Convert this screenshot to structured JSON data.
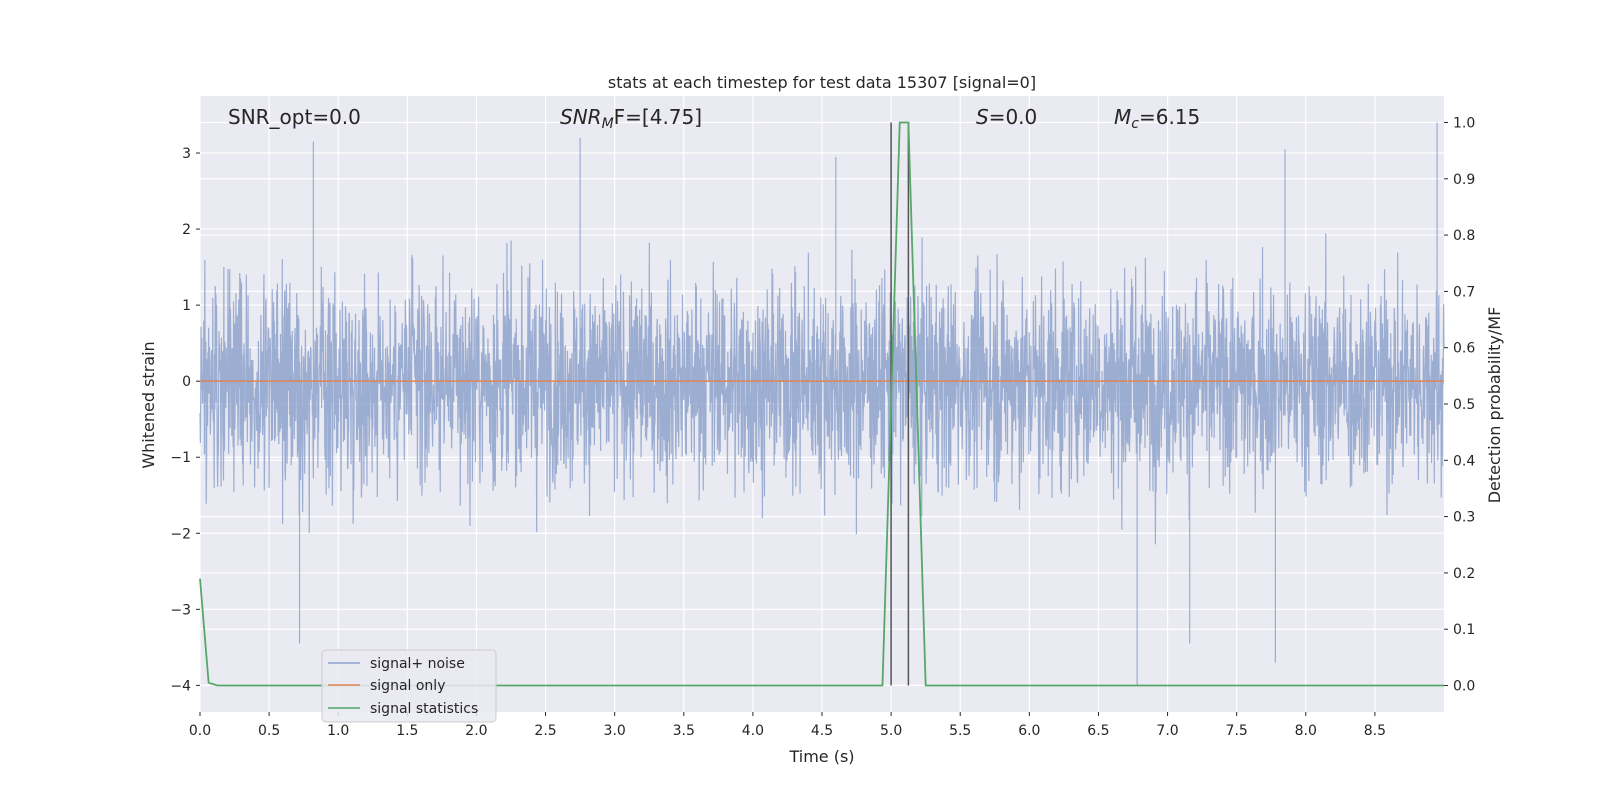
{
  "chart_data": {
    "type": "line",
    "title": "stats at each timestep for test data 15307 [signal=0]",
    "xlabel": "Time (s)",
    "ylabel": "Whitened strain",
    "ylabel_right": "Detection probability/MF",
    "xlim": [
      0.0,
      9.0
    ],
    "ylim": [
      -4.35,
      3.75
    ],
    "ylim_right": [
      -0.047,
      1.047
    ],
    "x_ticks": [
      0.0,
      0.5,
      1.0,
      1.5,
      2.0,
      2.5,
      3.0,
      3.5,
      4.0,
      4.5,
      5.0,
      5.5,
      6.0,
      6.5,
      7.0,
      7.5,
      8.0,
      8.5
    ],
    "x_tick_labels": [
      "0.0",
      "0.5",
      "1.0",
      "1.5",
      "2.0",
      "2.5",
      "3.0",
      "3.5",
      "4.0",
      "4.5",
      "5.0",
      "5.5",
      "6.0",
      "6.5",
      "7.0",
      "7.5",
      "8.0",
      "8.5"
    ],
    "y_ticks": [
      -4,
      -3,
      -2,
      -1,
      0,
      1,
      2,
      3
    ],
    "y_tick_labels": [
      "−4",
      "−3",
      "−2",
      "−1",
      "0",
      "1",
      "2",
      "3"
    ],
    "y_ticks_right": [
      0.0,
      0.1,
      0.2,
      0.3,
      0.4,
      0.5,
      0.6,
      0.7,
      0.8,
      0.9,
      1.0
    ],
    "y_tick_labels_right": [
      "0.0",
      "0.1",
      "0.2",
      "0.3",
      "0.4",
      "0.5",
      "0.6",
      "0.7",
      "0.8",
      "0.9",
      "1.0"
    ],
    "grid": true,
    "legend_position": "lower-left",
    "annotations": {
      "snr_opt": "SNR_opt=0.0",
      "snr_mf_sym": "SNR",
      "snr_mf_sub": "M",
      "snr_mf_rest": "F=[4.75]",
      "s_sym": "S",
      "s_rest": "=0.0",
      "mc_sym": "M",
      "mc_sub": "c",
      "mc_rest": "=6.15"
    },
    "series": [
      {
        "name": "signal+ noise",
        "axis": "left",
        "color": "#8ea2cc",
        "note_values": "dense whitened noise, roughly Gaussian with unit std; extremes observed",
        "peaks": [
          {
            "x": 0.82,
            "y": 3.15
          },
          {
            "x": 2.75,
            "y": 3.2
          },
          {
            "x": 4.6,
            "y": 2.95
          },
          {
            "x": 7.85,
            "y": 3.05
          },
          {
            "x": 8.95,
            "y": 3.4
          },
          {
            "x": 0.72,
            "y": -3.45
          },
          {
            "x": 6.78,
            "y": -4.0
          },
          {
            "x": 7.16,
            "y": -3.45
          },
          {
            "x": 7.78,
            "y": -3.7
          }
        ]
      },
      {
        "name": "signal only",
        "axis": "left",
        "color": "#dd8452",
        "x": [
          0.0,
          9.0
        ],
        "y": [
          0.0,
          0.0
        ]
      },
      {
        "name": "signal statistics",
        "axis": "right",
        "color": "#55a868",
        "x": [
          0.0,
          0.0625,
          0.125,
          0.1875,
          4.9375,
          5.0,
          5.0625,
          5.125,
          5.1875,
          5.25,
          9.0
        ],
        "y": [
          0.19,
          0.005,
          0.0,
          0.0,
          0.0,
          0.5,
          1.0,
          1.0,
          0.5,
          0.0,
          0.0
        ]
      }
    ],
    "vertical_lines": [
      5.0,
      5.125
    ]
  }
}
